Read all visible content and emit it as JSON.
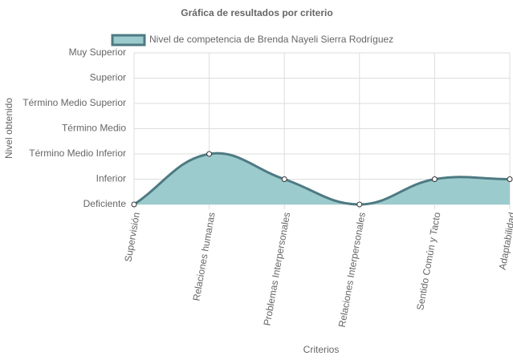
{
  "chart_data": {
    "type": "line",
    "title": "Gráfica de resultados por criterio",
    "x_label": "Criterios",
    "y_label": "Nivel obtenido",
    "categories": [
      "Supervisión",
      "Relaciones humanas",
      "Problemas Interpersonales",
      "Relaciones Interpersonales",
      "Sentido Común y Tacto",
      "Adaptabilidad"
    ],
    "series": [
      {
        "name": "Nivel de competencia de Brenda Nayeli Sierra Rodríguez",
        "color": "#4e7a82",
        "fill_color": "#9ccbcd",
        "values": [
          0,
          2,
          1,
          0,
          1,
          1
        ]
      }
    ],
    "ylim": [
      0,
      6
    ],
    "yticks": [
      {
        "value": 0,
        "label": "Deficiente"
      },
      {
        "value": 1,
        "label": "Inferior"
      },
      {
        "value": 2,
        "label": "Término Medio Inferior"
      },
      {
        "value": 3,
        "label": "Término Medio"
      },
      {
        "value": 4,
        "label": "Término Medio Superior"
      },
      {
        "value": 5,
        "label": "Superior"
      },
      {
        "value": 6,
        "label": "Muy Superior"
      }
    ],
    "grid": true,
    "legend": "top",
    "fill": true,
    "smooth": true
  }
}
